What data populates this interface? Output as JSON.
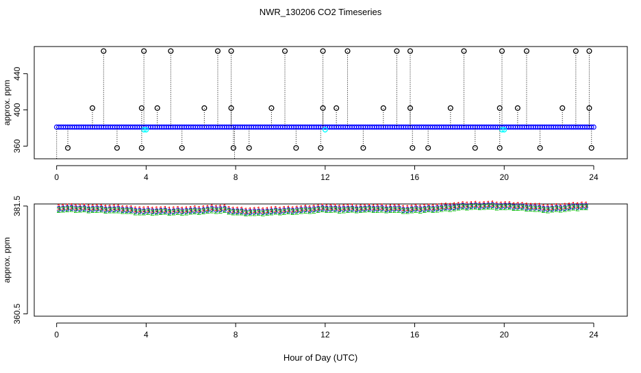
{
  "title": "NWR_130206  CO2 Timeseries",
  "xlabel": "Hour of Day (UTC)",
  "chart_data": [
    {
      "type": "scatter",
      "panel": "top",
      "ylabel": "approx. ppm",
      "xlim": [
        -1,
        25.5
      ],
      "ylim": [
        346,
        470
      ],
      "xticks": [
        0,
        4,
        8,
        12,
        16,
        20,
        24
      ],
      "yticks": [
        360,
        400,
        440
      ],
      "baseline": 381,
      "series": [
        {
          "name": "baseline",
          "color": "#0000ff",
          "x_start": 0,
          "x_end": 24,
          "step": 0.1,
          "y": 381
        },
        {
          "name": "flagged",
          "color": "#00ffff",
          "x": [
            3.9,
            4.0,
            12.0,
            19.9,
            20.0
          ],
          "y": [
            378,
            378,
            378,
            378,
            378
          ]
        },
        {
          "name": "outliers-high",
          "color": "#000000",
          "x": [
            2.1,
            3.9,
            5.1,
            7.2,
            7.8,
            10.2,
            11.9,
            13.0,
            15.2,
            15.8,
            18.2,
            19.9,
            21.0,
            23.2,
            23.8
          ],
          "y": [
            465,
            465,
            465,
            465,
            465,
            465,
            465,
            465,
            465,
            465,
            465,
            465,
            465,
            465,
            465
          ]
        },
        {
          "name": "outliers-mid",
          "color": "#000000",
          "x": [
            1.6,
            3.8,
            4.5,
            6.6,
            7.8,
            9.6,
            11.9,
            12.5,
            14.6,
            15.8,
            17.6,
            19.8,
            20.6,
            22.6,
            23.8
          ],
          "y": [
            402,
            402,
            402,
            402,
            402,
            402,
            402,
            402,
            402,
            402,
            402,
            402,
            402,
            402,
            402
          ]
        },
        {
          "name": "outliers-low",
          "color": "#000000",
          "x": [
            0.5,
            2.7,
            3.8,
            5.6,
            7.9,
            8.6,
            10.7,
            11.8,
            13.7,
            15.9,
            16.6,
            18.7,
            19.8,
            21.6,
            23.9
          ],
          "y": [
            358,
            358,
            358,
            358,
            358,
            358,
            358,
            358,
            358,
            358,
            358,
            358,
            358,
            358,
            358
          ]
        }
      ],
      "point_labels": {
        "dropline_bottom": "346"
      }
    },
    {
      "type": "scatter",
      "panel": "bottom",
      "ylabel": "approx. ppm",
      "xlim": [
        -1,
        25.5
      ],
      "ylim": [
        360.05,
        381.9
      ],
      "xticks": [
        0,
        4,
        8,
        12,
        16,
        20,
        24
      ],
      "yticks": [
        360.5,
        381.5
      ],
      "ytick_labels": [
        "360.5",
        "381.5"
      ],
      "plot_character": {
        "1": "1",
        "2": "2",
        "3": "3"
      },
      "series": [
        {
          "name": "1",
          "color": "#ff0000",
          "offset": 0.35
        },
        {
          "name": "3",
          "color": "#0000cc",
          "offset": 0.0
        },
        {
          "name": "2",
          "color": "#00bb00",
          "offset": -0.22
        }
      ],
      "base_curve": {
        "x": [
          0,
          1,
          2,
          3,
          3.9,
          4.3,
          5,
          6,
          7,
          7.6,
          7.8,
          8.3,
          9,
          10,
          11,
          12,
          13,
          14,
          15,
          15.7,
          16.1,
          17,
          18,
          18.5,
          19,
          19.4,
          20,
          21,
          21.6,
          22,
          22.6,
          23.2,
          23.5,
          23.8
        ],
        "y": [
          381.0,
          381.0,
          380.9,
          380.75,
          380.45,
          380.5,
          380.45,
          380.55,
          380.8,
          380.85,
          380.5,
          380.35,
          380.3,
          380.5,
          380.7,
          380.95,
          380.9,
          380.95,
          380.95,
          380.75,
          380.85,
          381.05,
          381.35,
          381.5,
          381.55,
          381.55,
          381.45,
          381.3,
          381.05,
          380.9,
          381.1,
          381.3,
          381.45,
          381.3
        ]
      }
    }
  ]
}
